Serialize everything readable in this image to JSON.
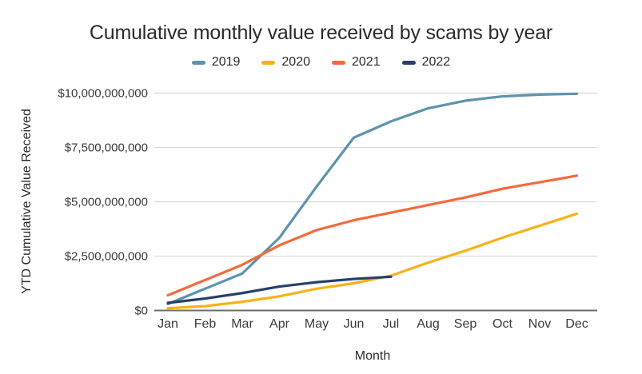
{
  "title": "Cumulative monthly value received by scams by year",
  "colors": {
    "background": "#ffffff",
    "grid_line": "#d9d9d9",
    "axis_line": "#6e6e6e",
    "text": "#2b2b2b"
  },
  "chart_data": {
    "type": "line",
    "title": "Cumulative monthly value received by scams by year",
    "xlabel": "Month",
    "ylabel": "YTD Cumulative Value Received",
    "categories": [
      "Jan",
      "Feb",
      "Mar",
      "Apr",
      "May",
      "Jun",
      "Jul",
      "Aug",
      "Sep",
      "Oct",
      "Nov",
      "Dec"
    ],
    "ylim": [
      0,
      10000000000
    ],
    "grid": "horizontal",
    "legend_position": "top",
    "y_ticks": [
      {
        "value": 0,
        "label": "$0"
      },
      {
        "value": 2500000000,
        "label": "$2,500,000,000"
      },
      {
        "value": 5000000000,
        "label": "$5,000,000,000"
      },
      {
        "value": 7500000000,
        "label": "$7,500,000,000"
      },
      {
        "value": 10000000000,
        "label": "$10,000,000,000"
      }
    ],
    "series": [
      {
        "name": "2019",
        "color": "#5e93ad",
        "values": [
          300000000,
          1000000000,
          1700000000,
          3350000000,
          5700000000,
          7950000000,
          8700000000,
          9300000000,
          9650000000,
          9850000000,
          9930000000,
          9970000000
        ]
      },
      {
        "name": "2020",
        "color": "#f8b217",
        "values": [
          100000000,
          200000000,
          400000000,
          650000000,
          1000000000,
          1250000000,
          1600000000,
          2200000000,
          2750000000,
          3350000000,
          3900000000,
          4450000000
        ]
      },
      {
        "name": "2021",
        "color": "#f5693d",
        "values": [
          700000000,
          1400000000,
          2100000000,
          3000000000,
          3700000000,
          4150000000,
          4500000000,
          4850000000,
          5200000000,
          5600000000,
          5900000000,
          6200000000
        ]
      },
      {
        "name": "2022",
        "color": "#27406b",
        "values": [
          350000000,
          550000000,
          800000000,
          1100000000,
          1300000000,
          1450000000,
          1550000000
        ]
      }
    ]
  }
}
